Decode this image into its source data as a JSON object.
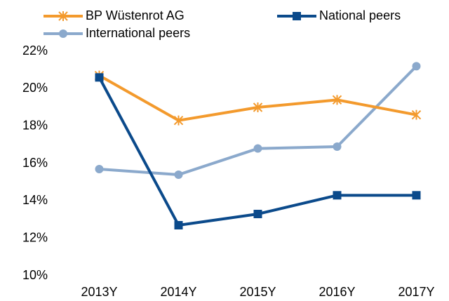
{
  "chart_data": {
    "type": "line",
    "categories": [
      "2013Y",
      "2014Y",
      "2015Y",
      "2016Y",
      "2017Y"
    ],
    "series": [
      {
        "name": "BP Wüstenrot AG",
        "color": "#f39a2d",
        "marker": "asterisk",
        "values": [
          20.7,
          18.3,
          19.0,
          19.4,
          18.6
        ]
      },
      {
        "name": "National peers",
        "color": "#0b4a8b",
        "marker": "square",
        "values": [
          20.6,
          12.7,
          13.3,
          14.3,
          14.3
        ]
      },
      {
        "name": "International peers",
        "color": "#8ba9cc",
        "marker": "circle",
        "values": [
          15.7,
          15.4,
          16.8,
          16.9,
          21.2
        ]
      }
    ],
    "ylim": [
      10,
      22
    ],
    "yticks": [
      {
        "value": 10,
        "label": "10%"
      },
      {
        "value": 12,
        "label": "12%"
      },
      {
        "value": 14,
        "label": "14%"
      },
      {
        "value": 16,
        "label": "16%"
      },
      {
        "value": 18,
        "label": "18%"
      },
      {
        "value": 20,
        "label": "20%"
      },
      {
        "value": 22,
        "label": "22%"
      }
    ],
    "grid": false,
    "legend": "top"
  }
}
